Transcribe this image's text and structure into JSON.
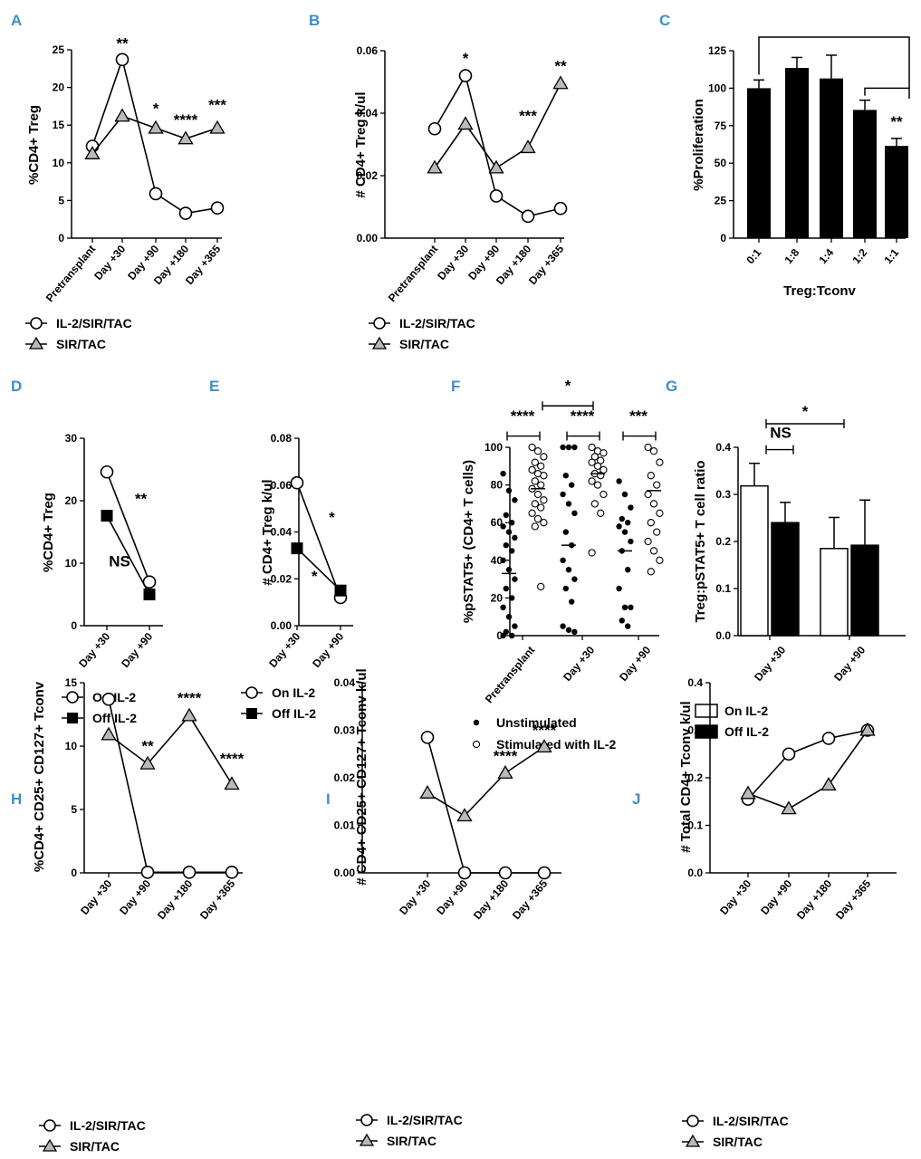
{
  "chart_data": [
    {
      "panel": "A",
      "type": "line",
      "categories": [
        "Pretransplant",
        "Day +30",
        "Day +90",
        "Day +180",
        "Day +365"
      ],
      "ylabel": "%CD4+ Treg",
      "ylim": [
        0,
        25
      ],
      "yticks": [
        0,
        5,
        10,
        15,
        20,
        25
      ],
      "tick_labels": [
        "0",
        "5",
        "10",
        "15",
        "20",
        "25"
      ],
      "series": [
        {
          "name": "IL-2/SIR/TAC",
          "marker": "circle",
          "values": [
            12.2,
            23.7,
            5.9,
            3.3,
            4.0
          ]
        },
        {
          "name": "SIR/TAC",
          "marker": "triangle",
          "values": [
            11.2,
            16.2,
            14.6,
            13.2,
            14.6
          ]
        }
      ],
      "annotations": [
        {
          "text": "**",
          "cat": 1,
          "y": 25.2
        },
        {
          "text": "*",
          "cat": 2,
          "y": 16.5
        },
        {
          "text": "****",
          "cat": 3,
          "y": 15.0
        },
        {
          "text": "***",
          "cat": 4,
          "y": 17.0
        }
      ]
    },
    {
      "panel": "B",
      "type": "line",
      "categories": [
        "Pretransplant",
        "Day +30",
        "Day +90",
        "Day +180",
        "Day +365"
      ],
      "ylabel": "# CD4+ Treg k/ul",
      "ylim": [
        0,
        0.06
      ],
      "yticks": [
        0,
        0.02,
        0.04,
        0.06
      ],
      "tick_labels": [
        "0.00",
        "0.02",
        "0.04",
        "0.06"
      ],
      "series": [
        {
          "name": "IL-2/SIR/TAC",
          "marker": "circle",
          "values": [
            0.035,
            0.052,
            0.0135,
            0.007,
            0.0095
          ]
        },
        {
          "name": "SIR/TAC",
          "marker": "triangle",
          "values": [
            0.0225,
            0.0365,
            0.0225,
            0.029,
            0.0495
          ]
        }
      ],
      "annotations": [
        {
          "text": "*",
          "cat": 1,
          "y": 0.056
        },
        {
          "text": "***",
          "cat": 3,
          "y": 0.0375
        },
        {
          "text": "**",
          "cat": 4,
          "y": 0.0535
        }
      ]
    },
    {
      "panel": "C",
      "type": "bar",
      "categories": [
        "0:1",
        "1:8",
        "1:4",
        "1:2",
        "1:1"
      ],
      "values": [
        100,
        113.5,
        106.5,
        85.5,
        61.5
      ],
      "errors": [
        5.5,
        7.0,
        15.5,
        6.5,
        5.0
      ],
      "xlabel": "Treg:Tconv",
      "ylabel": "%Proliferation",
      "ylim": [
        0,
        125
      ],
      "yticks": [
        0,
        25,
        50,
        75,
        100,
        125
      ],
      "tick_labels": [
        "0",
        "25",
        "50",
        "75",
        "100",
        "125"
      ],
      "sig_label": "**"
    },
    {
      "panel": "D",
      "type": "line",
      "categories": [
        "Day +30",
        "Day +90"
      ],
      "ylabel": "%CD4+ Treg",
      "ylim": [
        0,
        30
      ],
      "yticks": [
        0,
        10,
        20,
        30
      ],
      "tick_labels": [
        "0",
        "10",
        "20",
        "30"
      ],
      "series": [
        {
          "name": "On IL-2",
          "marker": "circle",
          "values": [
            24.6,
            7.0
          ]
        },
        {
          "name": "Off IL-2",
          "marker": "square",
          "values": [
            17.6,
            5.0
          ]
        }
      ],
      "annotations": [
        {
          "text": "**",
          "cat": 0.8,
          "y": 19.5
        },
        {
          "text": "NS",
          "cat": 0.3,
          "y": 9.5
        }
      ]
    },
    {
      "panel": "E",
      "type": "line",
      "categories": [
        "Day +30",
        "Day +90"
      ],
      "ylabel": "# CD4+ Treg k/ul",
      "ylim": [
        0,
        0.08
      ],
      "yticks": [
        0,
        0.02,
        0.04,
        0.06,
        0.08
      ],
      "tick_labels": [
        "0.00",
        "0.02",
        "0.04",
        "0.06",
        "0.08"
      ],
      "series": [
        {
          "name": "On IL-2",
          "marker": "circle",
          "values": [
            0.061,
            0.012
          ]
        },
        {
          "name": "Off IL-2",
          "marker": "square",
          "values": [
            0.033,
            0.015
          ]
        }
      ],
      "annotations": [
        {
          "text": "*",
          "cat": 0.8,
          "y": 0.044
        },
        {
          "text": "*",
          "cat": 0.4,
          "y": 0.019
        }
      ]
    },
    {
      "panel": "F",
      "type": "scatter",
      "categories": [
        "Pretransplant",
        "Day +30",
        "Day +90"
      ],
      "ylabel": "%pSTAT5+ (CD4+ T cells)",
      "ylim": [
        0,
        100
      ],
      "yticks": [
        0,
        20,
        40,
        60,
        80,
        100
      ],
      "tick_labels": [
        "0",
        "20",
        "40",
        "60",
        "80",
        "100"
      ],
      "series": [
        {
          "name": "Unstimulated",
          "marker": "dot",
          "groups": [
            [
              86,
              77,
              72,
              64,
              60,
              58,
              55,
              52,
              48,
              45,
              40,
              35,
              30,
              25,
              20,
              15,
              10,
              5,
              2,
              0,
              0
            ],
            [
              100,
              100,
              100,
              85,
              80,
              75,
              70,
              65,
              55,
              48,
              40,
              35,
              30,
              25,
              18,
              5,
              3,
              2
            ],
            [
              82,
              75,
              68,
              62,
              60,
              58,
              55,
              50,
              45,
              35,
              25,
              15,
              15,
              8,
              5
            ]
          ],
          "medians": [
            33,
            48,
            45
          ]
        },
        {
          "name": "Stimulated with IL-2",
          "marker": "open",
          "groups": [
            [
              100,
              98,
              95,
              92,
              90,
              88,
              86,
              85,
              82,
              80,
              78,
              75,
              72,
              70,
              68,
              65,
              62,
              60,
              58,
              26
            ],
            [
              100,
              98,
              97,
              95,
              93,
              92,
              90,
              88,
              86,
              85,
              82,
              80,
              75,
              70,
              65,
              44
            ],
            [
              100,
              98,
              92,
              85,
              80,
              75,
              70,
              65,
              60,
              55,
              50,
              45,
              40,
              34
            ]
          ],
          "medians": [
            78,
            86,
            77
          ]
        }
      ],
      "annotations": [
        {
          "text": "****",
          "group": 0,
          "y": 114
        },
        {
          "text": "****",
          "group": 1,
          "y": 114
        },
        {
          "text": "***",
          "group": 2,
          "y": 114
        },
        {
          "text": "*",
          "between": [
            0,
            1
          ],
          "y": 130
        }
      ]
    },
    {
      "panel": "G",
      "type": "bar",
      "categories": [
        "Day +30",
        "Day +90"
      ],
      "ylabel": "Treg:pSTAT5+ T cell ratio",
      "ylim": [
        0,
        0.4
      ],
      "yticks": [
        0,
        0.1,
        0.2,
        0.3,
        0.4
      ],
      "tick_labels": [
        "0.0",
        "0.1",
        "0.2",
        "0.3",
        "0.4"
      ],
      "series": [
        {
          "name": "On IL-2",
          "fill": "white",
          "values": [
            0.318,
            0.185
          ],
          "errors": [
            0.048,
            0.066
          ]
        },
        {
          "name": "Off IL-2",
          "fill": "black",
          "values": [
            0.24,
            0.192
          ],
          "errors": [
            0.043,
            0.096
          ]
        }
      ],
      "annotations": [
        {
          "text": "NS",
          "y": 0.42
        },
        {
          "text": "*",
          "y": 0.465
        }
      ]
    },
    {
      "panel": "H",
      "type": "line",
      "categories": [
        "Day +30",
        "Day +90",
        "Day +180",
        "Day +365"
      ],
      "ylabel": "%CD4+ CD25+ CD127+ Tconv",
      "ylim": [
        0,
        15
      ],
      "yticks": [
        0,
        5,
        10,
        15
      ],
      "tick_labels": [
        "0",
        "5",
        "10",
        "15"
      ],
      "series": [
        {
          "name": "IL-2/SIR/TAC",
          "marker": "circle",
          "values": [
            13.7,
            0.05,
            0.05,
            0.05
          ]
        },
        {
          "name": "SIR/TAC",
          "marker": "triangle",
          "values": [
            10.9,
            8.6,
            12.4,
            7.0
          ]
        }
      ],
      "annotations": [
        {
          "text": "**",
          "cat": 1,
          "y": 9.6
        },
        {
          "text": "****",
          "cat": 2,
          "y": 13.4
        },
        {
          "text": "****",
          "cat": 3,
          "y": 8.6
        }
      ]
    },
    {
      "panel": "I",
      "type": "line",
      "categories": [
        "Day +30",
        "Day +90",
        "Day +180",
        "Day +365"
      ],
      "ylabel": "# CD4+ CD25+ CD127+ Tconv k/ul",
      "ylim": [
        0,
        0.04
      ],
      "yticks": [
        0,
        0.01,
        0.02,
        0.03,
        0.04
      ],
      "tick_labels": [
        "0.00",
        "0.01",
        "0.02",
        "0.03",
        "0.04"
      ],
      "series": [
        {
          "name": "IL-2/SIR/TAC",
          "marker": "circle",
          "values": [
            0.0285,
            0.0,
            0.0,
            0.0
          ]
        },
        {
          "name": "SIR/TAC",
          "marker": "triangle",
          "values": [
            0.0168,
            0.012,
            0.021,
            0.0265
          ]
        }
      ],
      "annotations": [
        {
          "text": "****",
          "cat": 2,
          "y": 0.0235
        },
        {
          "text": "****",
          "cat": 3,
          "y": 0.029
        }
      ]
    },
    {
      "panel": "J",
      "type": "line",
      "categories": [
        "Day +30",
        "Day +90",
        "Day +180",
        "Day +365"
      ],
      "ylabel": "# Total CD4+ Tconv k/ul",
      "ylim": [
        0,
        0.4
      ],
      "yticks": [
        0,
        0.1,
        0.2,
        0.3,
        0.4
      ],
      "tick_labels": [
        "0.0",
        "0.1",
        "0.2",
        "0.3",
        "0.4"
      ],
      "series": [
        {
          "name": "IL-2/SIR/TAC",
          "marker": "circle",
          "values": [
            0.155,
            0.25,
            0.283,
            0.3
          ]
        },
        {
          "name": "SIR/TAC",
          "marker": "triangle",
          "values": [
            0.167,
            0.135,
            0.185,
            0.3
          ]
        }
      ],
      "annotations": []
    }
  ]
}
